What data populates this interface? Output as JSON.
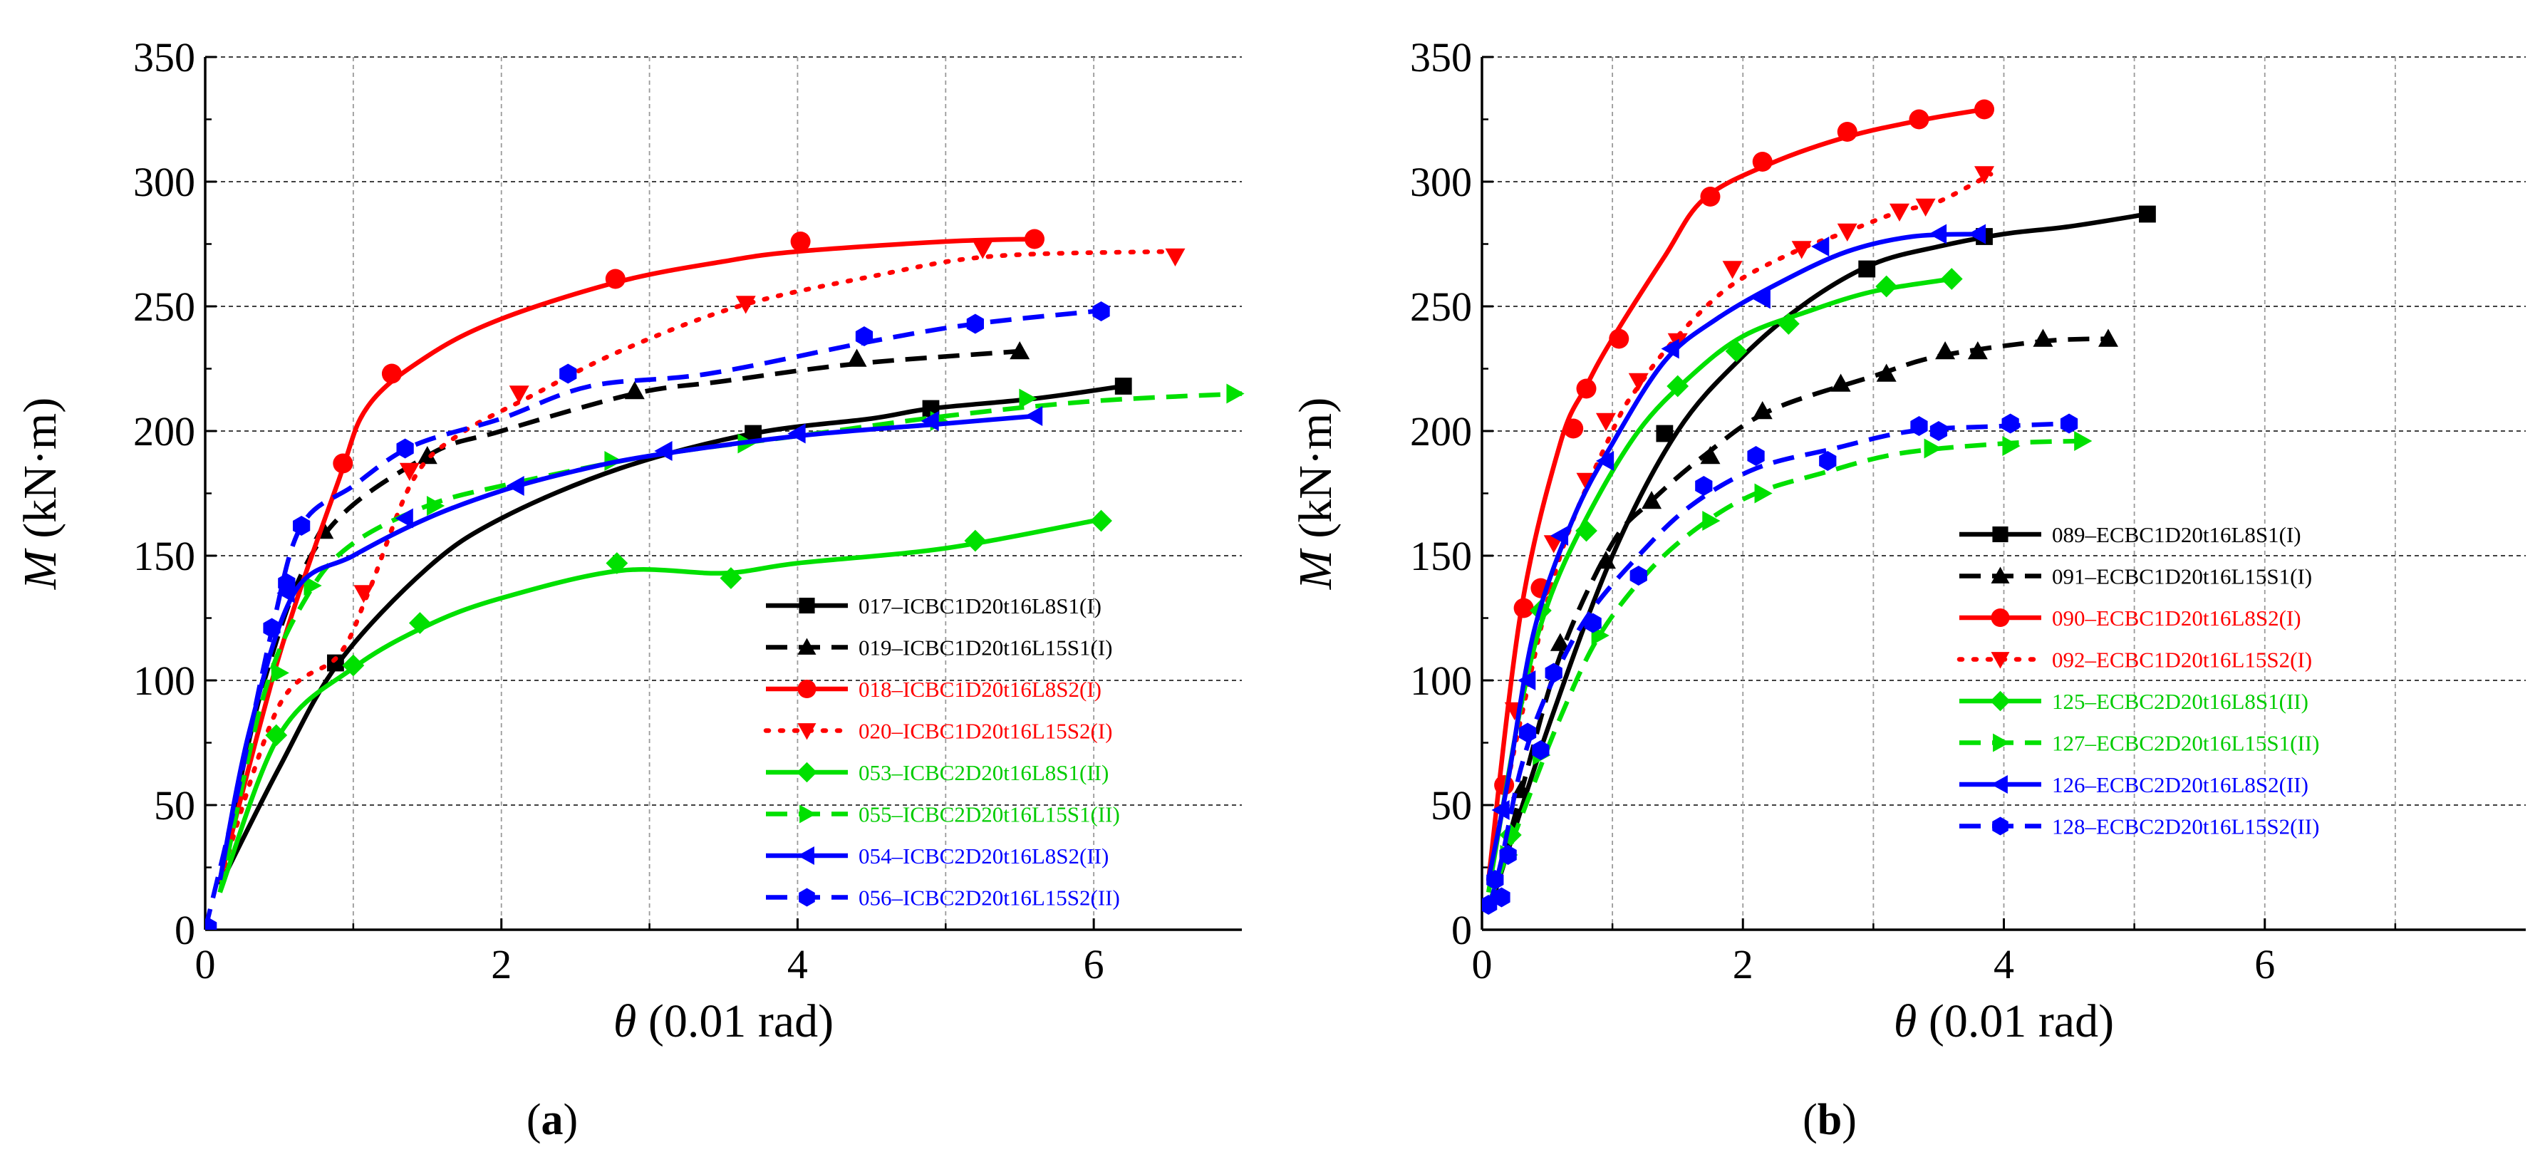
{
  "colors": {
    "black": "#000000",
    "red": "#ff0000",
    "green": "#00e000",
    "blue": "#0000ff",
    "grid": "#9a9a9a"
  },
  "chart_data": [
    {
      "type": "line",
      "panel_label": "a",
      "xlabel_symbol": "θ",
      "xlabel_unit": "(0.01 rad)",
      "ylabel_symbol": "M",
      "ylabel_unit": "(kN·m)",
      "xlim": [
        0,
        7
      ],
      "ylim": [
        0,
        350
      ],
      "xticks": [
        0,
        2,
        4,
        6
      ],
      "yticks": [
        0,
        50,
        100,
        150,
        200,
        250,
        300,
        350
      ],
      "grid": true,
      "legend_position": "bottom-right",
      "series": [
        {
          "name": "017–ICBC1D20t16L8S1(I)",
          "color": "black",
          "dash": "solid",
          "marker": "square",
          "x": [
            0.1,
            0.5,
            0.9,
            1.5,
            2.0,
            2.8,
            3.7,
            4.5,
            4.9,
            5.6,
            6.2
          ],
          "y": [
            18,
            65,
            107,
            145,
            165,
            185,
            199,
            205,
            209,
            213,
            218
          ],
          "markers": [
            [
              0.88,
              107
            ],
            [
              3.7,
              199
            ],
            [
              4.9,
              209
            ],
            [
              6.2,
              218
            ]
          ]
        },
        {
          "name": "019–ICBC1D20t16L15S1(I)",
          "color": "black",
          "dash": "dashed",
          "marker": "triangle-up",
          "x": [
            0.1,
            0.4,
            0.8,
            1.5,
            2.0,
            2.9,
            3.5,
            4.4,
            5.5
          ],
          "y": [
            20,
            100,
            158,
            190,
            200,
            215,
            220,
            227,
            232
          ],
          "markers": [
            [
              0.8,
              160
            ],
            [
              1.5,
              190
            ],
            [
              2.9,
              216
            ],
            [
              4.4,
              229
            ],
            [
              5.5,
              232
            ]
          ]
        },
        {
          "name": "018–ICBC1D20t16L8S2(I)",
          "color": "red",
          "dash": "solid",
          "marker": "circle",
          "x": [
            0.1,
            0.5,
            0.9,
            1.1,
            1.5,
            2.0,
            2.8,
            3.5,
            4.0,
            5.0,
            5.6
          ],
          "y": [
            20,
            110,
            180,
            210,
            230,
            245,
            260,
            268,
            272,
            276,
            277
          ],
          "markers": [
            [
              0.93,
              187
            ],
            [
              1.26,
              223
            ],
            [
              2.77,
              261
            ],
            [
              4.02,
              276
            ],
            [
              5.6,
              277
            ]
          ]
        },
        {
          "name": "020–ICBC1D20t16L15S2(I)",
          "color": "red",
          "dash": "dotted",
          "marker": "triangle-down",
          "x": [
            0.1,
            0.5,
            0.9,
            1.1,
            1.4,
            1.7,
            2.2,
            2.8,
            3.6,
            4.5,
            5.3,
            6.5
          ],
          "y": [
            20,
            90,
            110,
            135,
            180,
            198,
            214,
            232,
            250,
            262,
            270,
            272
          ],
          "markers": [
            [
              1.07,
              135
            ],
            [
              1.38,
              184
            ],
            [
              2.12,
              215
            ],
            [
              3.65,
              251
            ],
            [
              5.25,
              273
            ],
            [
              6.55,
              270
            ]
          ]
        },
        {
          "name": "053–ICBC2D20t16L8S1(II)",
          "color": "green",
          "dash": "solid",
          "marker": "diamond",
          "x": [
            0.1,
            0.5,
            1.0,
            1.5,
            2.0,
            2.8,
            3.5,
            4.0,
            5.0,
            6.0
          ],
          "y": [
            15,
            78,
            105,
            122,
            133,
            144,
            143,
            147,
            153,
            164
          ],
          "markers": [
            [
              0.48,
              78
            ],
            [
              1.0,
              106
            ],
            [
              1.45,
              123
            ],
            [
              2.78,
              147
            ],
            [
              3.55,
              141
            ],
            [
              5.2,
              156
            ],
            [
              6.05,
              164
            ]
          ]
        },
        {
          "name": "055–ICBC2D20t16L15S1(II)",
          "color": "green",
          "dash": "dashed",
          "marker": "triangle-right",
          "x": [
            0.1,
            0.4,
            0.7,
            1.0,
            1.5,
            2.0,
            3.0,
            4.0,
            5.0,
            6.0,
            7.0
          ],
          "y": [
            15,
            95,
            135,
            155,
            170,
            178,
            190,
            198,
            206,
            212,
            215
          ],
          "markers": [
            [
              0.5,
              103
            ],
            [
              0.72,
              138
            ],
            [
              1.55,
              170
            ],
            [
              2.75,
              188
            ],
            [
              3.65,
              195
            ],
            [
              4.95,
              204
            ],
            [
              5.55,
              213
            ],
            [
              6.95,
              215
            ]
          ]
        },
        {
          "name": "054–ICBC2D20t16L8S2(II)",
          "color": "blue",
          "dash": "solid",
          "marker": "triangle-left",
          "x": [
            0.1,
            0.3,
            0.6,
            1.0,
            1.5,
            2.0,
            2.5,
            3.0,
            4.0,
            5.0,
            5.6
          ],
          "y": [
            20,
            80,
            135,
            150,
            165,
            176,
            184,
            190,
            198,
            203,
            206
          ],
          "markers": [
            [
              0.55,
              135
            ],
            [
              1.35,
              165
            ],
            [
              2.1,
              178
            ],
            [
              3.1,
              192
            ],
            [
              4.0,
              199
            ],
            [
              4.9,
              204
            ],
            [
              5.6,
              206
            ]
          ]
        },
        {
          "name": "056–ICBC2D20t16L15S2(II)",
          "color": "blue",
          "dash": "dashed",
          "marker": "hexagon",
          "x": [
            0.0,
            0.2,
            0.45,
            0.65,
            1.0,
            1.4,
            2.0,
            2.6,
            3.4,
            4.5,
            5.2,
            6.0
          ],
          "y": [
            0,
            50,
            120,
            162,
            178,
            194,
            205,
            218,
            223,
            236,
            243,
            248
          ],
          "markers": [
            [
              0.02,
              1
            ],
            [
              0.45,
              121
            ],
            [
              0.55,
              139
            ],
            [
              0.65,
              162
            ],
            [
              1.35,
              193
            ],
            [
              2.45,
              223
            ],
            [
              4.45,
              238
            ],
            [
              5.2,
              243
            ],
            [
              6.05,
              248
            ]
          ]
        }
      ]
    },
    {
      "type": "line",
      "panel_label": "b",
      "xlabel_symbol": "θ",
      "xlabel_unit": "(0.01 rad)",
      "ylabel_symbol": "M",
      "ylabel_unit": "(kN·m)",
      "xlim": [
        0,
        8
      ],
      "ylim": [
        0,
        350
      ],
      "xticks": [
        0,
        2,
        4,
        6
      ],
      "yticks": [
        0,
        50,
        100,
        150,
        200,
        250,
        300,
        350
      ],
      "grid": true,
      "legend_position": "center-right",
      "series": [
        {
          "name": "089–ECBC1D20t16L8S1(I)",
          "color": "black",
          "dash": "solid",
          "marker": "square",
          "x": [
            0.1,
            0.5,
            1.0,
            1.5,
            2.0,
            2.5,
            3.0,
            3.5,
            4.0,
            4.5,
            5.1
          ],
          "y": [
            15,
            80,
            150,
            200,
            230,
            252,
            267,
            274,
            279,
            282,
            287
          ],
          "markers": [
            [
              1.4,
              199
            ],
            [
              2.95,
              265
            ],
            [
              3.85,
              278
            ],
            [
              5.1,
              287
            ]
          ]
        },
        {
          "name": "091–ECBC1D20t16L15S1(I)",
          "color": "black",
          "dash": "dashed",
          "marker": "triangle-up",
          "x": [
            0.1,
            0.3,
            0.6,
            1.0,
            1.3,
            1.7,
            2.2,
            3.0,
            3.5,
            4.3,
            4.8
          ],
          "y": [
            15,
            55,
            110,
            155,
            172,
            190,
            208,
            222,
            230,
            236,
            237
          ],
          "markers": [
            [
              0.3,
              56
            ],
            [
              0.6,
              115
            ],
            [
              0.95,
              148
            ],
            [
              1.3,
              172
            ],
            [
              1.75,
              190
            ],
            [
              2.15,
              208
            ],
            [
              2.75,
              219
            ],
            [
              3.1,
              223
            ],
            [
              3.55,
              232
            ],
            [
              3.8,
              232
            ],
            [
              4.3,
              237
            ],
            [
              4.8,
              237
            ]
          ]
        },
        {
          "name": "090–ECBC1D20t16L8S2(I)",
          "color": "red",
          "dash": "solid",
          "marker": "circle",
          "x": [
            0.05,
            0.3,
            0.6,
            0.8,
            1.0,
            1.4,
            1.7,
            2.2,
            2.8,
            3.4,
            3.85
          ],
          "y": [
            20,
            128,
            195,
            218,
            237,
            270,
            293,
            307,
            318,
            325,
            329
          ],
          "markers": [
            [
              0.17,
              58
            ],
            [
              0.32,
              129
            ],
            [
              0.45,
              137
            ],
            [
              0.7,
              201
            ],
            [
              0.8,
              217
            ],
            [
              1.05,
              237
            ],
            [
              1.75,
              294
            ],
            [
              2.15,
              308
            ],
            [
              2.8,
              320
            ],
            [
              3.35,
              325
            ],
            [
              3.85,
              329
            ]
          ]
        },
        {
          "name": "092–ECBC1D20t16L15S2(I)",
          "color": "red",
          "dash": "dotted",
          "marker": "triangle-down",
          "x": [
            0.05,
            0.3,
            0.6,
            1.0,
            1.2,
            1.5,
            1.9,
            2.4,
            2.8,
            3.2,
            3.5,
            3.9
          ],
          "y": [
            20,
            85,
            150,
            200,
            218,
            238,
            258,
            272,
            280,
            288,
            292,
            303
          ],
          "markers": [
            [
              0.25,
              88
            ],
            [
              0.55,
              155
            ],
            [
              0.8,
              180
            ],
            [
              0.95,
              204
            ],
            [
              1.2,
              220
            ],
            [
              1.5,
              236
            ],
            [
              1.92,
              265
            ],
            [
              2.45,
              273
            ],
            [
              2.8,
              280
            ],
            [
              3.2,
              288
            ],
            [
              3.4,
              290
            ],
            [
              3.85,
              303
            ]
          ]
        },
        {
          "name": "125–ECBC2D20t16L8S1(II)",
          "color": "green",
          "dash": "solid",
          "marker": "diamond",
          "x": [
            0.05,
            0.3,
            0.5,
            0.8,
            1.2,
            1.6,
            2.0,
            2.5,
            3.0,
            3.6
          ],
          "y": [
            15,
            90,
            130,
            165,
            200,
            222,
            238,
            248,
            256,
            261
          ],
          "markers": [
            [
              0.22,
              38
            ],
            [
              0.45,
              128
            ],
            [
              0.8,
              160
            ],
            [
              1.5,
              218
            ],
            [
              1.95,
              232
            ],
            [
              2.35,
              243
            ],
            [
              3.1,
              258
            ],
            [
              3.6,
              261
            ]
          ]
        },
        {
          "name": "127–ECBC2D20t16L15S1(II)",
          "color": "green",
          "dash": "dashed",
          "marker": "triangle-right",
          "x": [
            0.05,
            0.3,
            0.6,
            0.9,
            1.3,
            1.7,
            2.1,
            2.6,
            3.2,
            4.0,
            4.6
          ],
          "y": [
            10,
            45,
            85,
            118,
            145,
            163,
            175,
            183,
            191,
            195,
            196
          ],
          "markers": [
            [
              0.2,
              30
            ],
            [
              0.45,
              70
            ],
            [
              0.9,
              118
            ],
            [
              1.75,
              164
            ],
            [
              2.15,
              175
            ],
            [
              3.45,
              193
            ],
            [
              4.05,
              194
            ],
            [
              4.6,
              196
            ]
          ]
        },
        {
          "name": "126–ECBC2D20t16L8S2(II)",
          "color": "blue",
          "dash": "solid",
          "marker": "triangle-left",
          "x": [
            0.05,
            0.2,
            0.4,
            0.7,
            1.0,
            1.4,
            1.8,
            2.3,
            2.8,
            3.3,
            3.8
          ],
          "y": [
            20,
            60,
            120,
            165,
            195,
            228,
            245,
            260,
            272,
            278,
            279
          ],
          "markers": [
            [
              0.15,
              48
            ],
            [
              0.35,
              100
            ],
            [
              0.6,
              158
            ],
            [
              0.95,
              188
            ],
            [
              1.45,
              233
            ],
            [
              2.15,
              253
            ],
            [
              2.6,
              274
            ],
            [
              3.5,
              279
            ],
            [
              3.8,
              279
            ]
          ]
        },
        {
          "name": "128–ECBC2D20t16L15S2(II)",
          "color": "blue",
          "dash": "dashed",
          "marker": "hexagon",
          "x": [
            0.05,
            0.15,
            0.3,
            0.5,
            0.8,
            1.2,
            1.6,
            2.1,
            2.7,
            3.3,
            4.0,
            4.5
          ],
          "y": [
            8,
            28,
            65,
            95,
            125,
            150,
            170,
            185,
            193,
            200,
            202,
            203
          ],
          "markers": [
            [
              0.05,
              10
            ],
            [
              0.1,
              20
            ],
            [
              0.15,
              13
            ],
            [
              0.2,
              30
            ],
            [
              0.35,
              79
            ],
            [
              0.45,
              72
            ],
            [
              0.55,
              103
            ],
            [
              0.85,
              123
            ],
            [
              1.2,
              142
            ],
            [
              1.7,
              178
            ],
            [
              2.1,
              190
            ],
            [
              2.65,
              188
            ],
            [
              3.35,
              202
            ],
            [
              3.5,
              200
            ],
            [
              4.05,
              203
            ],
            [
              4.5,
              203
            ]
          ]
        }
      ]
    }
  ]
}
